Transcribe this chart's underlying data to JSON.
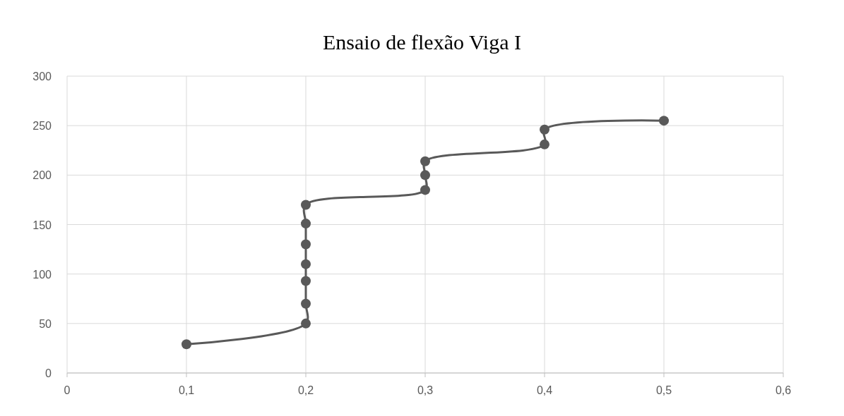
{
  "chart_data": {
    "type": "line",
    "title": "Ensaio de flexão Viga I",
    "x": [
      0.1,
      0.2,
      0.2,
      0.2,
      0.2,
      0.2,
      0.2,
      0.2,
      0.3,
      0.3,
      0.3,
      0.4,
      0.4,
      0.5
    ],
    "series": [
      {
        "color": "#595959",
        "values": [
          29,
          50,
          70,
          93,
          110,
          130,
          151,
          170,
          185,
          200,
          214,
          231,
          246,
          255
        ]
      }
    ],
    "xlim": [
      0,
      0.6
    ],
    "xticks": [
      0,
      {
        "value": 0.1,
        "label": "0,1"
      },
      {
        "value": 0.2,
        "label": "0,2"
      },
      {
        "value": 0.3,
        "label": "0,3"
      },
      {
        "value": 0.4,
        "label": "0,4"
      },
      {
        "value": 0.5,
        "label": "0,5"
      },
      {
        "value": 0.6,
        "label": "0,6"
      }
    ],
    "ylim": [
      0,
      300
    ],
    "yticks": [
      0,
      50,
      100,
      150,
      200,
      250,
      300
    ],
    "grid": true,
    "marker": "circle",
    "line_style": "solid"
  }
}
